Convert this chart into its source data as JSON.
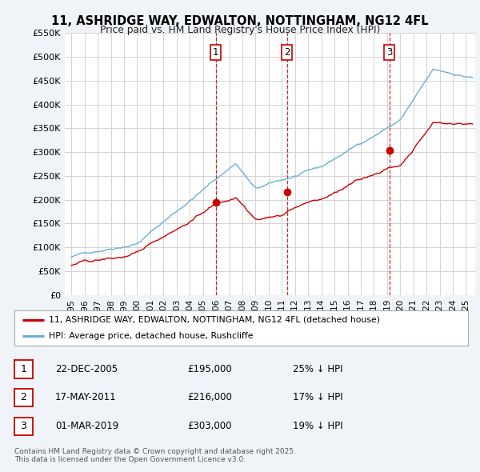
{
  "title": "11, ASHRIDGE WAY, EDWALTON, NOTTINGHAM, NG12 4FL",
  "subtitle": "Price paid vs. HM Land Registry's House Price Index (HPI)",
  "background_color": "#f0f4f8",
  "plot_bg_color": "#ffffff",
  "ylim": [
    0,
    550000
  ],
  "yticks": [
    0,
    50000,
    100000,
    150000,
    200000,
    250000,
    300000,
    350000,
    400000,
    450000,
    500000,
    550000
  ],
  "ytick_labels": [
    "£0",
    "£50K",
    "£100K",
    "£150K",
    "£200K",
    "£250K",
    "£300K",
    "£350K",
    "£400K",
    "£450K",
    "£500K",
    "£550K"
  ],
  "red_line_color": "#cc0000",
  "blue_line_color": "#6baed6",
  "vline_color": "#cc0000",
  "sale_markers": [
    {
      "year": 2005.97,
      "price": 195000,
      "label": "1"
    },
    {
      "year": 2011.38,
      "price": 216000,
      "label": "2"
    },
    {
      "year": 2019.17,
      "price": 303000,
      "label": "3"
    }
  ],
  "legend_red_label": "11, ASHRIDGE WAY, EDWALTON, NOTTINGHAM, NG12 4FL (detached house)",
  "legend_blue_label": "HPI: Average price, detached house, Rushcliffe",
  "table_rows": [
    {
      "num": "1",
      "date": "22-DEC-2005",
      "price": "£195,000",
      "hpi": "25% ↓ HPI"
    },
    {
      "num": "2",
      "date": "17-MAY-2011",
      "price": "£216,000",
      "hpi": "17% ↓ HPI"
    },
    {
      "num": "3",
      "date": "01-MAR-2019",
      "price": "£303,000",
      "hpi": "19% ↓ HPI"
    }
  ],
  "footnote": "Contains HM Land Registry data © Crown copyright and database right 2025.\nThis data is licensed under the Open Government Licence v3.0."
}
